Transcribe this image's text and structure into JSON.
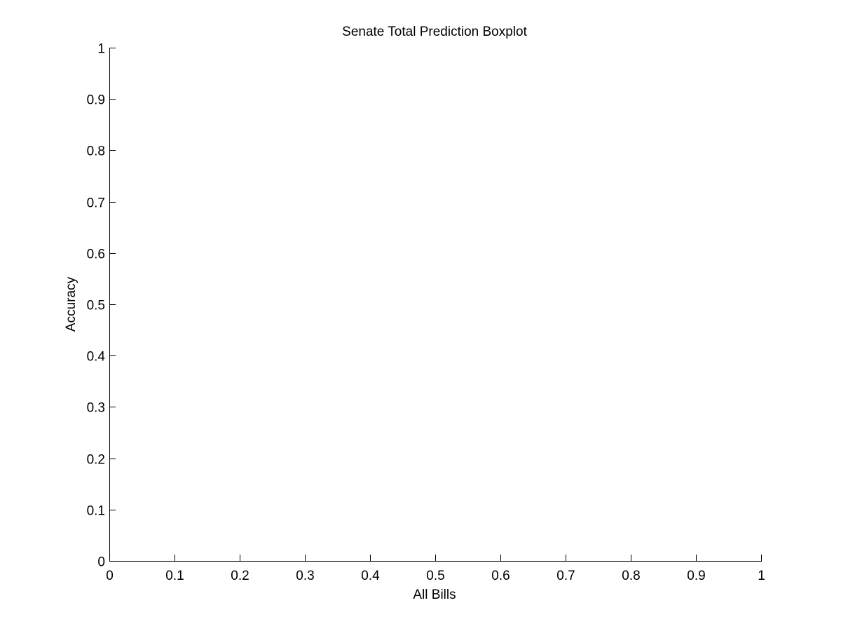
{
  "chart_data": {
    "type": "box",
    "title": "Senate Total Prediction Boxplot",
    "xlabel": "All Bills",
    "ylabel": "Accuracy",
    "xlim": [
      0,
      1
    ],
    "ylim": [
      0,
      1
    ],
    "xticks": [
      0,
      0.1,
      0.2,
      0.3,
      0.4,
      0.5,
      0.6,
      0.7,
      0.8,
      0.9,
      1
    ],
    "yticks": [
      0,
      0.1,
      0.2,
      0.3,
      0.4,
      0.5,
      0.6,
      0.7,
      0.8,
      0.9,
      1
    ],
    "xtick_labels": [
      "0",
      "0.1",
      "0.2",
      "0.3",
      "0.4",
      "0.5",
      "0.6",
      "0.7",
      "0.8",
      "0.9",
      "1"
    ],
    "ytick_labels": [
      "0",
      "0.1",
      "0.2",
      "0.3",
      "0.4",
      "0.5",
      "0.6",
      "0.7",
      "0.8",
      "0.9",
      "1"
    ],
    "grid": false,
    "box": false,
    "series": []
  },
  "colors": {
    "axis": "#000000",
    "background": "#ffffff"
  }
}
